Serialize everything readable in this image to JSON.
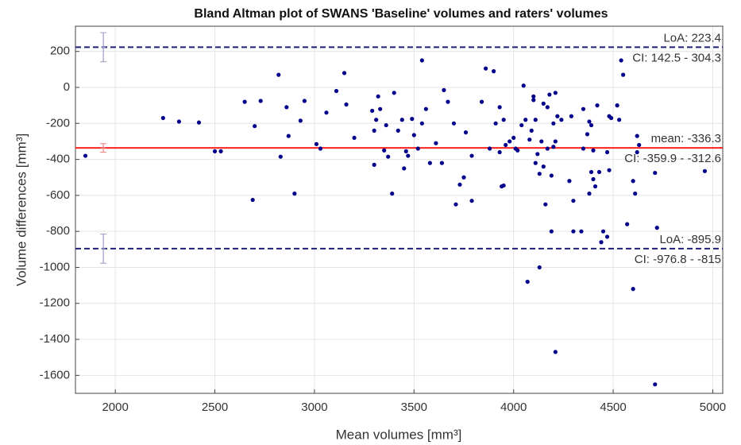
{
  "chart_data": {
    "type": "scatter",
    "title": "Bland Altman plot of SWANS 'Baseline' volumes and raters' volumes",
    "x_label": "Mean volumes [mm³]",
    "y_label": "Volume differences [mm³]",
    "color": "#00008b",
    "grid": true,
    "xlim": [
      1800,
      5050
    ],
    "ylim": [
      -1700,
      340
    ],
    "xticks": [
      2000,
      2500,
      3000,
      3500,
      4000,
      4500,
      5000
    ],
    "yticks": [
      -1600,
      -1400,
      -1200,
      -1000,
      -800,
      -600,
      -400,
      -200,
      0,
      200
    ],
    "x": [
      1850,
      2240,
      2320,
      2420,
      2500,
      2530,
      2650,
      2690,
      2700,
      2730,
      2820,
      2830,
      2860,
      2870,
      2900,
      2930,
      2950,
      3010,
      3030,
      3060,
      3110,
      3150,
      3160,
      3200,
      3290,
      3300,
      3300,
      3320,
      3330,
      3310,
      3350,
      3360,
      3370,
      3390,
      3400,
      3420,
      3440,
      3450,
      3460,
      3470,
      3490,
      3500,
      3520,
      3540,
      3540,
      3560,
      3580,
      3610,
      3640,
      3650,
      3670,
      3700,
      3710,
      3730,
      3750,
      3760,
      3790,
      3790,
      3840,
      3860,
      3880,
      3900,
      3910,
      3930,
      3930,
      3940,
      3950,
      3950,
      3960,
      3980,
      4000,
      4010,
      4020,
      4040,
      4050,
      4060,
      4070,
      4080,
      4090,
      4100,
      4100,
      4110,
      4110,
      4120,
      4130,
      4130,
      4140,
      4150,
      4150,
      4160,
      4170,
      4170,
      4180,
      4190,
      4190,
      4200,
      4200,
      4210,
      4210,
      4210,
      4220,
      4240,
      4280,
      4290,
      4300,
      4300,
      4340,
      4350,
      4350,
      4370,
      4380,
      4380,
      4390,
      4390,
      4400,
      4400,
      4410,
      4420,
      4430,
      4440,
      4450,
      4470,
      4470,
      4480,
      4480,
      4490,
      4520,
      4530,
      4540,
      4550,
      4570,
      4600,
      4600,
      4610,
      4620,
      4620,
      4630,
      4710,
      4710,
      4720,
      4960
    ],
    "values": [
      -380,
      -170,
      -190,
      -195,
      -355,
      -355,
      -80,
      -625,
      -215,
      -75,
      70,
      -385,
      -110,
      -270,
      -590,
      -185,
      -75,
      -315,
      -340,
      -140,
      -20,
      80,
      -95,
      -280,
      -130,
      -430,
      -240,
      -50,
      -120,
      -180,
      -350,
      -210,
      -385,
      -590,
      -30,
      -240,
      -180,
      -450,
      -355,
      -380,
      -175,
      -265,
      -340,
      150,
      -200,
      -120,
      -420,
      -310,
      -420,
      -15,
      -80,
      -200,
      -650,
      -540,
      -500,
      -250,
      -380,
      -630,
      -80,
      105,
      -340,
      90,
      -200,
      -110,
      -360,
      -550,
      -545,
      -180,
      -320,
      -300,
      -280,
      -340,
      -350,
      -210,
      10,
      -180,
      -1080,
      -290,
      -240,
      -50,
      -70,
      -180,
      -420,
      -370,
      -1000,
      -480,
      -300,
      -440,
      -90,
      -650,
      -340,
      -110,
      -40,
      -800,
      -490,
      -200,
      -330,
      -300,
      -1470,
      -30,
      -160,
      -180,
      -520,
      -160,
      -800,
      -630,
      -800,
      -340,
      -120,
      -260,
      -590,
      -190,
      -210,
      -470,
      -510,
      -350,
      -550,
      -100,
      -470,
      -860,
      -800,
      -830,
      -360,
      -160,
      -460,
      -170,
      -100,
      -180,
      150,
      70,
      -760,
      -1120,
      -520,
      -590,
      -270,
      -360,
      -320,
      -1650,
      -475,
      -780,
      -465
    ],
    "errorbar_x": 1940,
    "reference_lines": [
      {
        "value": 223.4,
        "label": "LoA: 223.4",
        "ci": [
          142.5,
          304.3
        ],
        "ci_label": "CI: 142.5 - 304.3",
        "color": "#1f1f7a",
        "dashed": true,
        "ci_color": "#9a9ac8"
      },
      {
        "value": -336.3,
        "label": "mean: -336.3",
        "ci": [
          -359.9,
          -312.6
        ],
        "ci_label": "CI: -359.9 - -312.6",
        "color": "#ff2020",
        "dashed": false,
        "ci_color": "#f08080"
      },
      {
        "value": -895.9,
        "label": "LoA: -895.9",
        "ci": [
          -976.8,
          -815
        ],
        "ci_label": "CI: -976.8 - -815",
        "color": "#1f1f7a",
        "dashed": true,
        "ci_color": "#9a9ac8"
      }
    ]
  }
}
